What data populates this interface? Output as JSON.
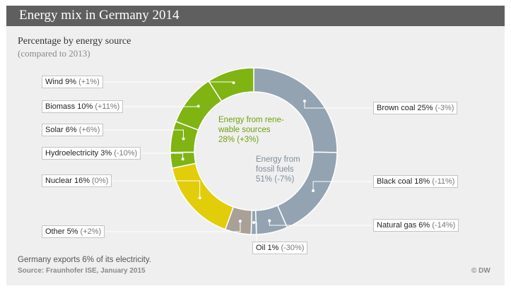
{
  "chart_data": {
    "type": "pie",
    "title": "Energy mix in Germany 2014",
    "subtitle": "Percentage by energy source",
    "note": "(compared to 2013)",
    "series": [
      {
        "name": "Brown coal",
        "value": 25,
        "change": "(-3%)",
        "label": "Brown coal  25%",
        "color": "#93a3b2"
      },
      {
        "name": "Black coal",
        "value": 18,
        "change": "(-11%)",
        "label": "Black coal 18%",
        "color": "#93a3b2"
      },
      {
        "name": "Natural gas",
        "value": 6,
        "change": "(-14%)",
        "label": "Natural gas 6%",
        "color": "#93a3b2"
      },
      {
        "name": "Oil",
        "value": 1,
        "change": "(-30%)",
        "label": "Oil 1%",
        "color": "#93a3b2"
      },
      {
        "name": "Other",
        "value": 5,
        "change": "(+2%)",
        "label": "Other 5%",
        "color": "#a9a197"
      },
      {
        "name": "Nuclear",
        "value": 16,
        "change": "(0%)",
        "label": "Nuclear 16%",
        "color": "#e2cd0a"
      },
      {
        "name": "Hydroelectricity",
        "value": 3,
        "change": "(-10%)",
        "label": "Hydroelectricity  3%",
        "color": "#7fb413"
      },
      {
        "name": "Solar",
        "value": 6,
        "change": "(+6%)",
        "label": "Solar 6%",
        "color": "#7fb413"
      },
      {
        "name": "Biomass",
        "value": 10,
        "change": "(+11%)",
        "label": "Biomass 10%",
        "color": "#7fb413"
      },
      {
        "name": "Wind",
        "value": 9,
        "change": "(+1%)",
        "label": "Wind 9%",
        "color": "#7fb413"
      }
    ],
    "groups": {
      "renewable": {
        "line1": "Energy from rene-",
        "line2": "wable sources",
        "value": "28%",
        "change": "(+3%)"
      },
      "fossil": {
        "line1": "Energy from",
        "line2": "fossil fuels",
        "value": "51%",
        "change": "(-7%)"
      }
    }
  },
  "footnote": "Germany exports 6% of its electricity.",
  "source": "Source: Fraunhofer ISE, January 2015",
  "copyright": "© DW"
}
